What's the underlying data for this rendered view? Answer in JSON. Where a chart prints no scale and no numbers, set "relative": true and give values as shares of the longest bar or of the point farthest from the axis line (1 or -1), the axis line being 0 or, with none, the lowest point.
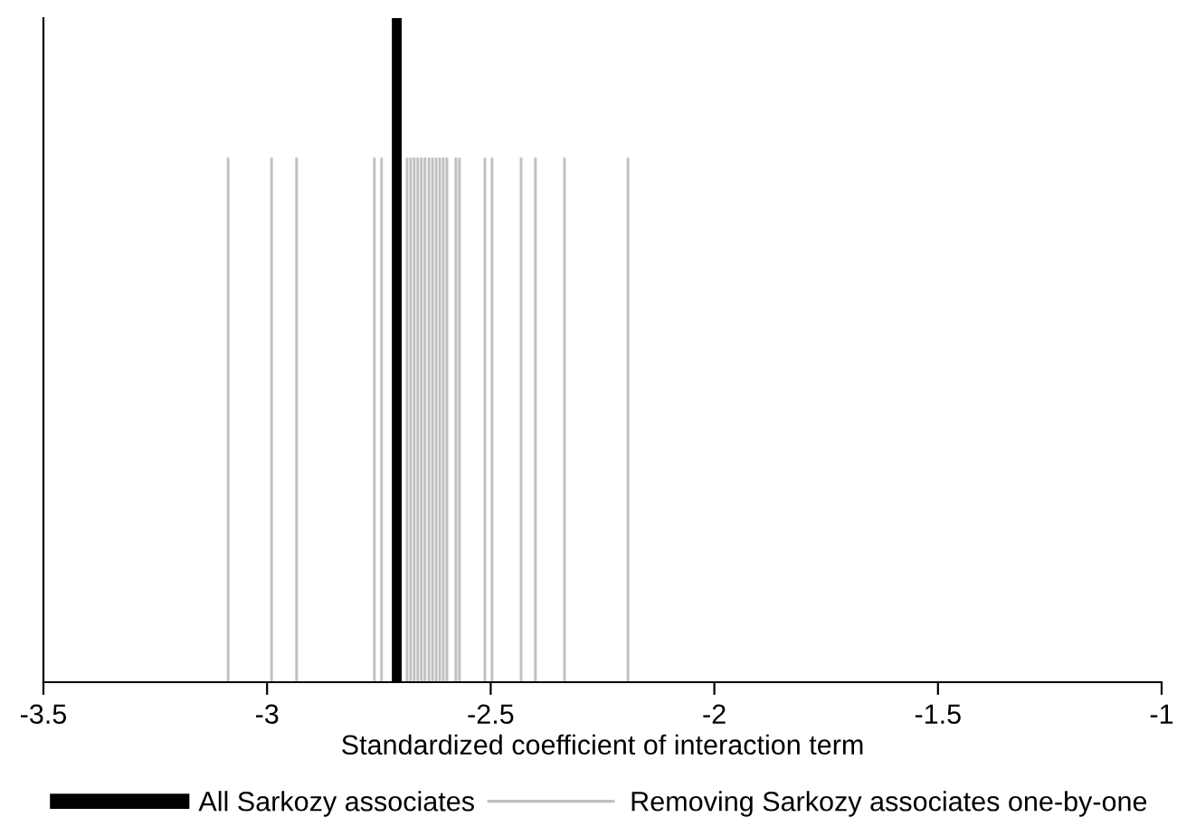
{
  "chart_data": {
    "type": "bar",
    "relative": true,
    "xlabel": "Standardized coefficient of interaction term",
    "xlim": [
      -3.5,
      -1
    ],
    "xticks": [
      -3.5,
      -3,
      -2.5,
      -2,
      -1.5,
      -1
    ],
    "grid": false,
    "legend": "bottom",
    "series": [
      {
        "name": "All Sarkozy associates",
        "color": "#000000",
        "x": [
          -2.71
        ],
        "values": [
          1
        ]
      },
      {
        "name": "Removing Sarkozy associates one-by-one",
        "color": "#c0c0c0",
        "x": [
          -3.087,
          -2.99,
          -2.934,
          -2.76,
          -2.744,
          -2.687,
          -2.679,
          -2.671,
          -2.663,
          -2.655,
          -2.647,
          -2.638,
          -2.63,
          -2.622,
          -2.614,
          -2.606,
          -2.598,
          -2.578,
          -2.57,
          -2.513,
          -2.497,
          -2.432,
          -2.4,
          -2.335,
          -2.193
        ],
        "values": [
          0.79,
          0.79,
          0.79,
          0.79,
          0.79,
          0.79,
          0.79,
          0.79,
          0.79,
          0.79,
          0.79,
          0.79,
          0.79,
          0.79,
          0.79,
          0.79,
          0.79,
          0.79,
          0.79,
          0.79,
          0.79,
          0.79,
          0.79,
          0.79,
          0.79
        ]
      }
    ]
  }
}
